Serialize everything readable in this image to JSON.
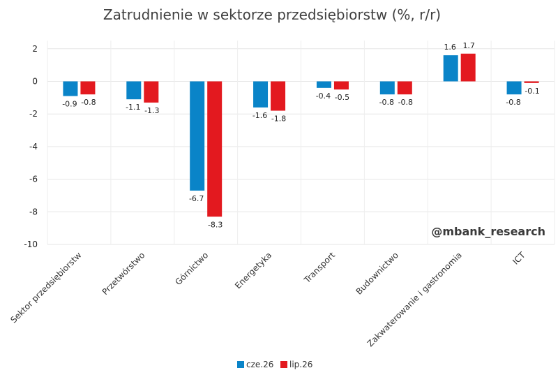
{
  "chart_data": {
    "type": "bar",
    "title": "Zatrudnienie w sektorze przedsiębiorstw (%, r/r)",
    "categories": [
      "Sektor przedsiębiorstw",
      "Przetwórstwo",
      "Górnictwo",
      "Energetyka",
      "Transport",
      "Budownictwo",
      "Zakwaterowanie i gastronomia",
      "ICT"
    ],
    "series": [
      {
        "name": "cze.26",
        "color": "#0a84c8",
        "values": [
          -0.9,
          -1.1,
          -6.7,
          -1.6,
          -0.4,
          -0.8,
          1.6,
          -0.8
        ],
        "labels": [
          "-0.9",
          "-1.1",
          "-6.7",
          "-1.6",
          "-0.4",
          "-0.8",
          "1.6",
          "-0.8"
        ]
      },
      {
        "name": "lip.26",
        "color": "#e3191f",
        "values": [
          -0.8,
          -1.3,
          -8.3,
          -1.8,
          -0.5,
          -0.8,
          1.7,
          -0.1
        ],
        "labels": [
          "-0.8",
          "-1.3",
          "-8.3",
          "-1.8",
          "-0.5",
          "-0.8",
          "1.7",
          "-0.1"
        ]
      }
    ],
    "ylim": [
      -10,
      2.5
    ],
    "yticks": [
      "2",
      "0",
      "-2",
      "-4",
      "-6",
      "-8",
      "-10"
    ],
    "ytick_values": [
      2,
      0,
      -2,
      -4,
      -6,
      -8,
      -10
    ],
    "grid": true,
    "legend": "bottom-center",
    "watermark": "@mbank_research"
  }
}
